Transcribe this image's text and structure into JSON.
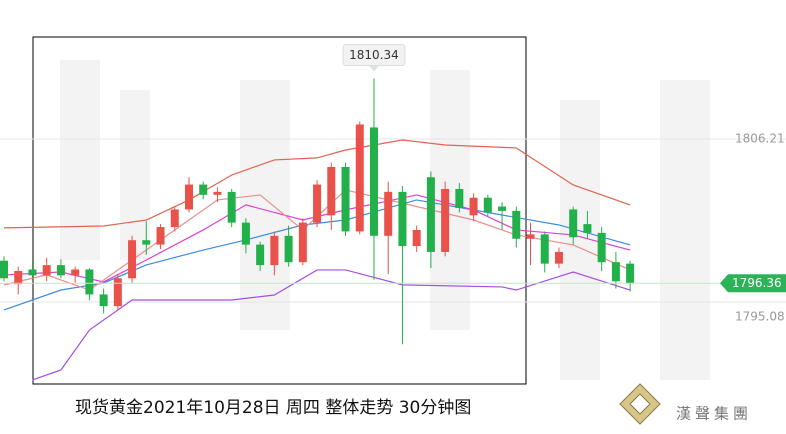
{
  "chart_data": {
    "type": "candlestick",
    "caption": "现货黄金2021年10月28日 周四  整体走势  30分钟图",
    "brand": "漢聲集團",
    "up_color": "#e8524a",
    "down_color": "#22b04b",
    "ylim": [
      1786.07,
      1815.7
    ],
    "yticks": [
      1806.21,
      1795.08
    ],
    "open": [
      1797.9,
      1796.3,
      1797.3,
      1796.9,
      1797.6,
      1796.9,
      1797.3,
      1795.6,
      1794.8,
      1796.7,
      1799.3,
      1799.0,
      1800.2,
      1801.4,
      1803.1,
      1802.4,
      1802.6,
      1800.5,
      1799.0,
      1797.6,
      1799.6,
      1797.8,
      1800.5,
      1801.0,
      1804.3,
      1799.9,
      1807.0,
      1799.6,
      1802.6,
      1798.9,
      1803.6,
      1798.5,
      1802.8,
      1801.0,
      1802.2,
      1801.6,
      1801.3,
      1799.4,
      1799.7,
      1797.7,
      1801.4,
      1800.4,
      1799.8,
      1797.8,
      1797.7
    ],
    "high": [
      1798.2,
      1797.5,
      1797.8,
      1798.1,
      1798.0,
      1797.5,
      1797.4,
      1796.0,
      1797.0,
      1799.6,
      1800.6,
      1800.4,
      1801.6,
      1803.6,
      1803.3,
      1802.9,
      1802.8,
      1800.8,
      1799.2,
      1799.9,
      1800.3,
      1800.8,
      1803.4,
      1804.6,
      1804.6,
      1807.4,
      1810.34,
      1803.3,
      1803.0,
      1800.3,
      1804.0,
      1803.3,
      1803.2,
      1802.5,
      1802.4,
      1801.9,
      1801.6,
      1800.5,
      1799.9,
      1798.8,
      1801.6,
      1801.3,
      1800.2,
      1798.5,
      1797.9
    ],
    "low": [
      1796.5,
      1795.6,
      1796.6,
      1796.5,
      1796.7,
      1796.4,
      1795.2,
      1794.3,
      1794.5,
      1796.4,
      1798.3,
      1798.7,
      1799.9,
      1801.2,
      1802.1,
      1801.9,
      1800.2,
      1798.4,
      1797.2,
      1796.9,
      1797.5,
      1797.6,
      1800.2,
      1800.0,
      1799.6,
      1799.7,
      1796.6,
      1797.0,
      1792.2,
      1798.5,
      1797.4,
      1798.2,
      1801.2,
      1800.6,
      1800.9,
      1800.0,
      1798.8,
      1797.6,
      1797.1,
      1797.4,
      1799.0,
      1799.4,
      1797.2,
      1796.0,
      1795.8
    ],
    "close": [
      1796.7,
      1797.2,
      1796.9,
      1797.6,
      1796.9,
      1797.3,
      1795.6,
      1794.8,
      1796.7,
      1799.3,
      1799.0,
      1800.2,
      1801.4,
      1803.1,
      1802.4,
      1802.6,
      1800.5,
      1799.0,
      1797.6,
      1799.6,
      1797.8,
      1800.5,
      1803.1,
      1804.3,
      1799.9,
      1807.2,
      1799.6,
      1802.6,
      1798.9,
      1800.0,
      1798.5,
      1802.8,
      1801.5,
      1802.2,
      1801.2,
      1801.3,
      1799.4,
      1799.7,
      1797.7,
      1798.5,
      1799.5,
      1799.8,
      1797.8,
      1796.5,
      1796.36
    ],
    "lines": [
      {
        "color": "#e0644f",
        "x": [
          0,
          7,
          10,
          13,
          16,
          19,
          22,
          24,
          28,
          31,
          36,
          40,
          44
        ],
        "values": [
          1800.14,
          1800.27,
          1800.68,
          1802.05,
          1803.75,
          1804.78,
          1804.92,
          1805.46,
          1806.14,
          1805.8,
          1805.6,
          1803.07,
          1801.71
        ]
      },
      {
        "color": "#a64fe0",
        "x": [
          2,
          4,
          6,
          9,
          12,
          16,
          19,
          22,
          24,
          28,
          35,
          36,
          40,
          44
        ],
        "values": [
          1789.76,
          1790.44,
          1793.17,
          1795.22,
          1795.22,
          1795.22,
          1795.56,
          1797.27,
          1797.27,
          1796.25,
          1796.11,
          1795.9,
          1797.13,
          1795.9
        ]
      },
      {
        "color": "#3b8de0",
        "x": [
          0,
          4,
          7,
          10,
          14,
          17,
          21,
          24,
          29,
          35,
          39,
          44
        ],
        "values": [
          1794.54,
          1795.9,
          1796.38,
          1797.61,
          1798.63,
          1799.32,
          1800.34,
          1800.68,
          1802.05,
          1801.02,
          1800.34,
          1798.98
        ]
      },
      {
        "color": "#e03fd0",
        "x": [
          0,
          4,
          7,
          10,
          14,
          17,
          21,
          24,
          29,
          33,
          36,
          40,
          44
        ],
        "values": [
          1796.93,
          1797.13,
          1796.45,
          1797.95,
          1800.0,
          1801.71,
          1800.68,
          1801.37,
          1802.39,
          1801.37,
          1800.0,
          1799.66,
          1798.63
        ]
      },
      {
        "color": "#f08a8a",
        "x": [
          0,
          3,
          6,
          9,
          12,
          15,
          18,
          21,
          24,
          27,
          30,
          33,
          36,
          40,
          44
        ],
        "values": [
          1796.25,
          1796.93,
          1795.9,
          1797.95,
          1800.0,
          1802.05,
          1802.39,
          1800.0,
          1802.73,
          1802.05,
          1801.37,
          1800.68,
          1799.66,
          1798.98,
          1797.27
        ]
      }
    ]
  }
}
